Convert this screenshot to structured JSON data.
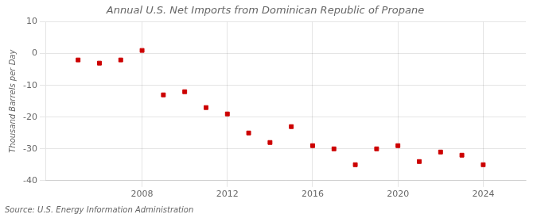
{
  "chart_data": {
    "type": "scatter",
    "title": "Annual U.S. Net Imports from Dominican Republic of Propane",
    "ylabel": "Thousand Barrels per Day",
    "annotations": [
      "Source: U.S. Energy Information Administration"
    ],
    "x": [
      2005,
      2006,
      2007,
      2008,
      2009,
      2010,
      2011,
      2012,
      2013,
      2014,
      2015,
      2016,
      2017,
      2018,
      2019,
      2020,
      2021,
      2022,
      2023,
      2024
    ],
    "values": [
      -2,
      -3,
      -2,
      1,
      -13,
      -12,
      -17,
      -19,
      -25,
      -28,
      -23,
      -29,
      -30,
      -35,
      -30,
      -29,
      -34,
      -31,
      -32,
      -35
    ],
    "color": "#cc0000",
    "marker": "square",
    "ylim": [
      -40,
      10
    ],
    "yticks": [
      -40,
      -30,
      -20,
      -10,
      0,
      10
    ],
    "xlim": [
      2003.5,
      2026.0
    ],
    "xticks": [
      2008,
      2012,
      2016,
      2020,
      2024
    ],
    "grid": true
  }
}
